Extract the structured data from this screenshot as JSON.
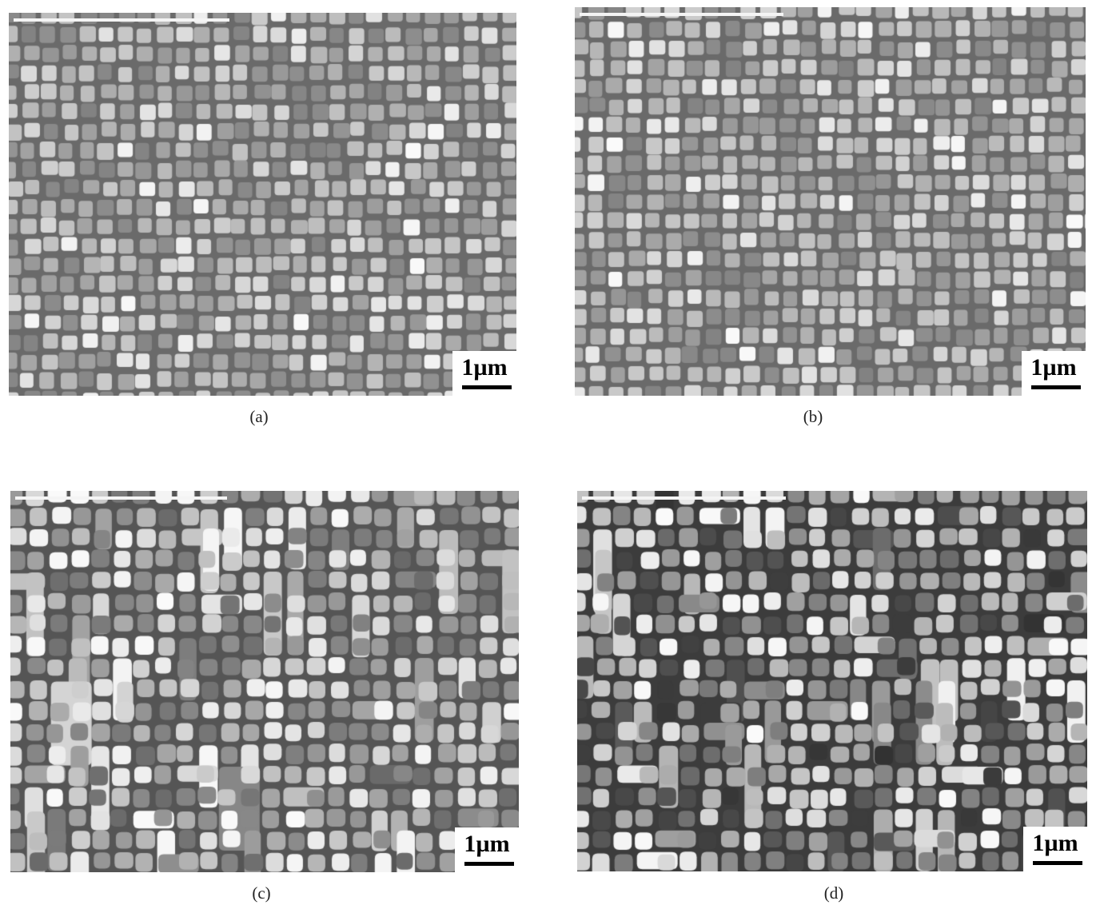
{
  "figure": {
    "panels": [
      {
        "id": "a",
        "caption": "(a)",
        "scale_label": "1µm",
        "image": "sem-micrograph-cuboidal-gamma-prime-regular"
      },
      {
        "id": "b",
        "caption": "(b)",
        "scale_label": "1µm",
        "image": "sem-micrograph-cuboidal-gamma-prime-regular"
      },
      {
        "id": "c",
        "caption": "(c)",
        "scale_label": "1µm",
        "image": "sem-micrograph-rafted-gamma-prime-coarsened"
      },
      {
        "id": "d",
        "caption": "(d)",
        "scale_label": "1µm",
        "image": "sem-micrograph-rafted-gamma-prime-coarsened-dark"
      }
    ]
  }
}
